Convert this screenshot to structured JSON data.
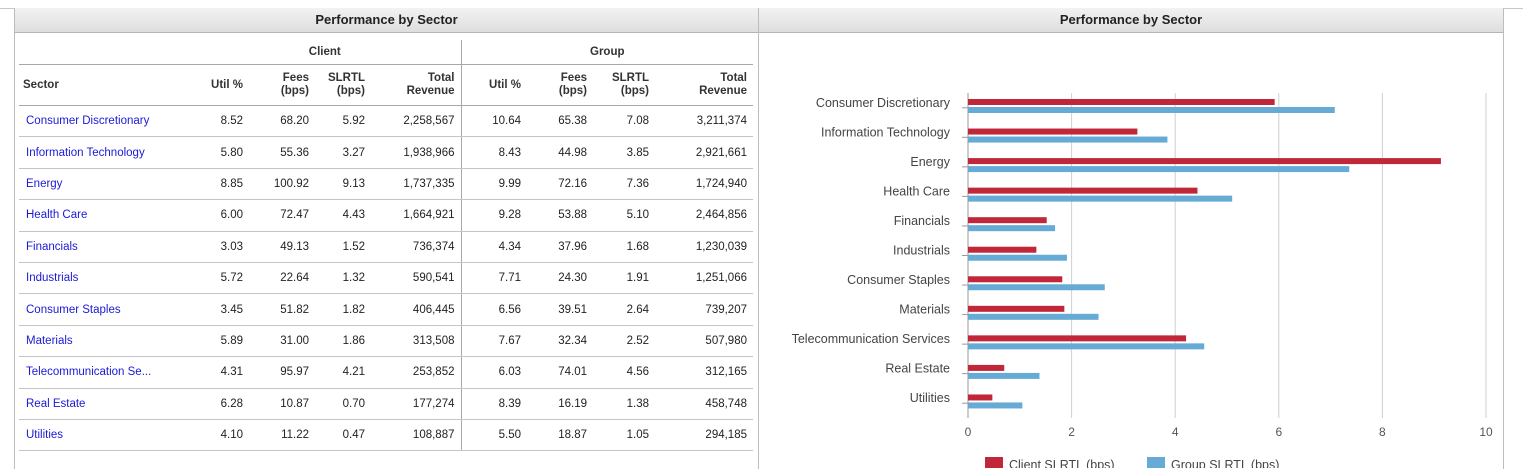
{
  "left_panel": {
    "title": "Performance by Sector",
    "group_headers": {
      "client": "Client",
      "group": "Group"
    },
    "columns": {
      "sector": "Sector",
      "util": "Util %",
      "fees_1": "Fees",
      "fees_2": "(bps)",
      "slrtl_1": "SLRTL",
      "slrtl_2": "(bps)",
      "rev_1": "Total",
      "rev_2": "Revenue"
    },
    "rows": [
      {
        "sector": "Consumer Discretionary",
        "c_util": "8.52",
        "c_fees": "68.20",
        "c_slrtl": "5.92",
        "c_rev": "2,258,567",
        "g_util": "10.64",
        "g_fees": "65.38",
        "g_slrtl": "7.08",
        "g_rev": "3,211,374"
      },
      {
        "sector": "Information Technology",
        "c_util": "5.80",
        "c_fees": "55.36",
        "c_slrtl": "3.27",
        "c_rev": "1,938,966",
        "g_util": "8.43",
        "g_fees": "44.98",
        "g_slrtl": "3.85",
        "g_rev": "2,921,661"
      },
      {
        "sector": "Energy",
        "c_util": "8.85",
        "c_fees": "100.92",
        "c_slrtl": "9.13",
        "c_rev": "1,737,335",
        "g_util": "9.99",
        "g_fees": "72.16",
        "g_slrtl": "7.36",
        "g_rev": "1,724,940"
      },
      {
        "sector": "Health Care",
        "c_util": "6.00",
        "c_fees": "72.47",
        "c_slrtl": "4.43",
        "c_rev": "1,664,921",
        "g_util": "9.28",
        "g_fees": "53.88",
        "g_slrtl": "5.10",
        "g_rev": "2,464,856"
      },
      {
        "sector": "Financials",
        "c_util": "3.03",
        "c_fees": "49.13",
        "c_slrtl": "1.52",
        "c_rev": "736,374",
        "g_util": "4.34",
        "g_fees": "37.96",
        "g_slrtl": "1.68",
        "g_rev": "1,230,039"
      },
      {
        "sector": "Industrials",
        "c_util": "5.72",
        "c_fees": "22.64",
        "c_slrtl": "1.32",
        "c_rev": "590,541",
        "g_util": "7.71",
        "g_fees": "24.30",
        "g_slrtl": "1.91",
        "g_rev": "1,251,066"
      },
      {
        "sector": "Consumer Staples",
        "c_util": "3.45",
        "c_fees": "51.82",
        "c_slrtl": "1.82",
        "c_rev": "406,445",
        "g_util": "6.56",
        "g_fees": "39.51",
        "g_slrtl": "2.64",
        "g_rev": "739,207"
      },
      {
        "sector": "Materials",
        "c_util": "5.89",
        "c_fees": "31.00",
        "c_slrtl": "1.86",
        "c_rev": "313,508",
        "g_util": "7.67",
        "g_fees": "32.34",
        "g_slrtl": "2.52",
        "g_rev": "507,980"
      },
      {
        "sector": "Telecommunication Se...",
        "c_util": "4.31",
        "c_fees": "95.97",
        "c_slrtl": "4.21",
        "c_rev": "253,852",
        "g_util": "6.03",
        "g_fees": "74.01",
        "g_slrtl": "4.56",
        "g_rev": "312,165"
      },
      {
        "sector": "Real Estate",
        "c_util": "6.28",
        "c_fees": "10.87",
        "c_slrtl": "0.70",
        "c_rev": "177,274",
        "g_util": "8.39",
        "g_fees": "16.19",
        "g_slrtl": "1.38",
        "g_rev": "458,748"
      },
      {
        "sector": "Utilities",
        "c_util": "4.10",
        "c_fees": "11.22",
        "c_slrtl": "0.47",
        "c_rev": "108,887",
        "g_util": "5.50",
        "g_fees": "18.87",
        "g_slrtl": "1.05",
        "g_rev": "294,185"
      }
    ]
  },
  "right_panel": {
    "title": "Performance by Sector"
  },
  "chart_data": {
    "type": "bar",
    "orientation": "horizontal",
    "title": "",
    "xlabel": "",
    "ylabel": "",
    "categories": [
      "Consumer Discretionary",
      "Information Technology",
      "Energy",
      "Health Care",
      "Financials",
      "Industrials",
      "Consumer Staples",
      "Materials",
      "Telecommunication Services",
      "Real Estate",
      "Utilities"
    ],
    "series": [
      {
        "name": "Client SLRTL (bps)",
        "color": "#c0283a",
        "values": [
          5.92,
          3.27,
          9.13,
          4.43,
          1.52,
          1.32,
          1.82,
          1.86,
          4.21,
          0.7,
          0.47
        ]
      },
      {
        "name": "Group SLRTL (bps)",
        "color": "#66aad6",
        "values": [
          7.08,
          3.85,
          7.36,
          5.1,
          1.68,
          1.91,
          2.64,
          2.52,
          4.56,
          1.38,
          1.05
        ]
      }
    ],
    "xlim": [
      0,
      10
    ],
    "xticks": [
      "0",
      "2",
      "4",
      "6",
      "8",
      "10"
    ],
    "grid": true,
    "legend_position": "bottom"
  }
}
